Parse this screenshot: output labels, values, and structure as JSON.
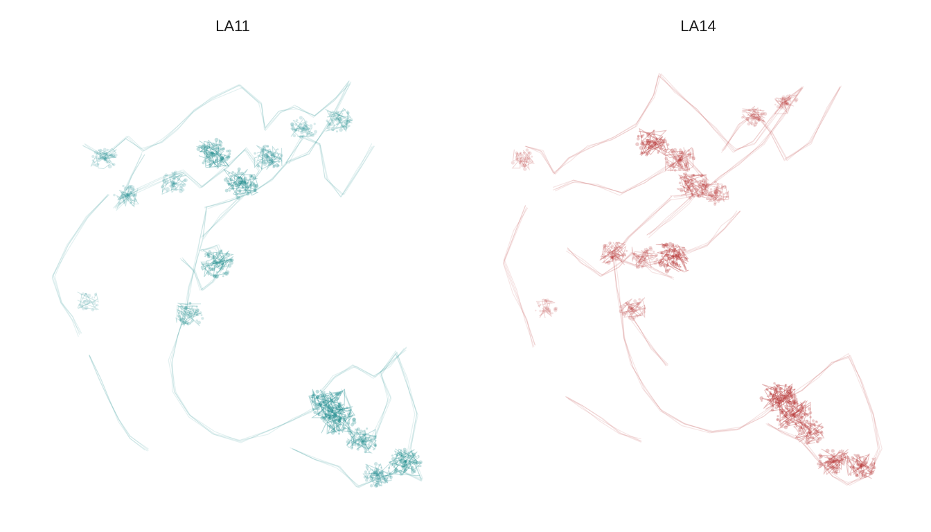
{
  "chart_data": [
    {
      "type": "line",
      "title": "LA11",
      "subtitle": "",
      "xlabel": "",
      "ylabel": "",
      "color": "#1a8a8c",
      "axes_visible": false,
      "grid": false,
      "legend": "none",
      "series": [
        {
          "points": [
            [
              0.1,
              0.18
            ],
            [
              0.14,
              0.2
            ],
            [
              0.17,
              0.19
            ],
            [
              0.21,
              0.16
            ],
            [
              0.25,
              0.19
            ],
            [
              0.3,
              0.17
            ],
            [
              0.34,
              0.14
            ],
            [
              0.38,
              0.1
            ],
            [
              0.43,
              0.07
            ],
            [
              0.5,
              0.04
            ],
            [
              0.55,
              0.08
            ],
            [
              0.56,
              0.14
            ],
            [
              0.6,
              0.1
            ],
            [
              0.64,
              0.09
            ],
            [
              0.69,
              0.11
            ],
            [
              0.74,
              0.07
            ],
            [
              0.78,
              0.03
            ],
            [
              0.73,
              0.12
            ],
            [
              0.67,
              0.2
            ],
            [
              0.62,
              0.22
            ],
            [
              0.58,
              0.26
            ],
            [
              0.53,
              0.29
            ],
            [
              0.47,
              0.31
            ],
            [
              0.41,
              0.33
            ]
          ]
        },
        {
          "points": [
            [
              0.41,
              0.33
            ],
            [
              0.4,
              0.4
            ],
            [
              0.38,
              0.47
            ],
            [
              0.37,
              0.52
            ],
            [
              0.36,
              0.57
            ],
            [
              0.34,
              0.63
            ],
            [
              0.32,
              0.69
            ],
            [
              0.33,
              0.76
            ],
            [
              0.37,
              0.82
            ],
            [
              0.43,
              0.86
            ],
            [
              0.5,
              0.88
            ],
            [
              0.57,
              0.86
            ],
            [
              0.63,
              0.83
            ],
            [
              0.68,
              0.81
            ],
            [
              0.72,
              0.79
            ],
            [
              0.76,
              0.76
            ]
          ]
        },
        {
          "points": [
            [
              0.76,
              0.76
            ],
            [
              0.78,
              0.8
            ],
            [
              0.77,
              0.85
            ],
            [
              0.8,
              0.88
            ],
            [
              0.84,
              0.87
            ],
            [
              0.86,
              0.83
            ],
            [
              0.88,
              0.78
            ],
            [
              0.86,
              0.72
            ],
            [
              0.9,
              0.67
            ],
            [
              0.92,
              0.73
            ],
            [
              0.95,
              0.82
            ],
            [
              0.93,
              0.9
            ],
            [
              0.96,
              0.97
            ],
            [
              0.91,
              0.95
            ],
            [
              0.85,
              0.97
            ],
            [
              0.8,
              0.99
            ],
            [
              0.75,
              0.94
            ],
            [
              0.69,
              0.92
            ],
            [
              0.63,
              0.9
            ]
          ]
        },
        {
          "points": [
            [
              0.16,
              0.3
            ],
            [
              0.11,
              0.35
            ],
            [
              0.06,
              0.42
            ],
            [
              0.02,
              0.49
            ],
            [
              0.04,
              0.55
            ],
            [
              0.07,
              0.59
            ],
            [
              0.09,
              0.63
            ]
          ]
        },
        {
          "points": [
            [
              0.11,
              0.68
            ],
            [
              0.14,
              0.73
            ],
            [
              0.16,
              0.78
            ],
            [
              0.19,
              0.83
            ],
            [
              0.22,
              0.87
            ],
            [
              0.26,
              0.9
            ]
          ]
        },
        {
          "points": [
            [
              0.25,
              0.2
            ],
            [
              0.22,
              0.25
            ],
            [
              0.2,
              0.3
            ],
            [
              0.18,
              0.33
            ],
            [
              0.23,
              0.29
            ],
            [
              0.3,
              0.26
            ],
            [
              0.35,
              0.24
            ],
            [
              0.4,
              0.28
            ],
            [
              0.46,
              0.23
            ],
            [
              0.51,
              0.19
            ],
            [
              0.55,
              0.24
            ],
            [
              0.5,
              0.3
            ],
            [
              0.45,
              0.35
            ],
            [
              0.4,
              0.4
            ]
          ]
        },
        {
          "points": [
            [
              0.35,
              0.45
            ],
            [
              0.38,
              0.48
            ],
            [
              0.4,
              0.52
            ],
            [
              0.43,
              0.5
            ],
            [
              0.46,
              0.46
            ],
            [
              0.44,
              0.42
            ],
            [
              0.4,
              0.43
            ]
          ]
        },
        {
          "points": [
            [
              0.62,
              0.22
            ],
            [
              0.66,
              0.16
            ],
            [
              0.7,
              0.18
            ],
            [
              0.72,
              0.26
            ],
            [
              0.76,
              0.3
            ],
            [
              0.8,
              0.24
            ],
            [
              0.84,
              0.18
            ]
          ]
        },
        {
          "points": [
            [
              0.69,
              0.78
            ],
            [
              0.74,
              0.73
            ],
            [
              0.79,
              0.7
            ],
            [
              0.84,
              0.73
            ],
            [
              0.88,
              0.7
            ],
            [
              0.92,
              0.66
            ]
          ]
        }
      ],
      "clusters": [
        {
          "x": 0.43,
          "y": 0.2,
          "weight": 0.9
        },
        {
          "x": 0.5,
          "y": 0.27,
          "weight": 0.9
        },
        {
          "x": 0.57,
          "y": 0.21,
          "weight": 0.6
        },
        {
          "x": 0.66,
          "y": 0.14,
          "weight": 0.4
        },
        {
          "x": 0.75,
          "y": 0.12,
          "weight": 0.5
        },
        {
          "x": 0.33,
          "y": 0.27,
          "weight": 0.4
        },
        {
          "x": 0.15,
          "y": 0.21,
          "weight": 0.4
        },
        {
          "x": 0.21,
          "y": 0.3,
          "weight": 0.4
        },
        {
          "x": 0.44,
          "y": 0.46,
          "weight": 0.8
        },
        {
          "x": 0.37,
          "y": 0.58,
          "weight": 0.5
        },
        {
          "x": 0.72,
          "y": 0.79,
          "weight": 1.0
        },
        {
          "x": 0.75,
          "y": 0.83,
          "weight": 0.9
        },
        {
          "x": 0.81,
          "y": 0.88,
          "weight": 0.7
        },
        {
          "x": 0.92,
          "y": 0.93,
          "weight": 0.8
        },
        {
          "x": 0.85,
          "y": 0.96,
          "weight": 0.6
        },
        {
          "x": 0.11,
          "y": 0.55,
          "weight": 0.2
        }
      ]
    },
    {
      "type": "line",
      "title": "LA14",
      "subtitle": "",
      "xlabel": "",
      "ylabel": "",
      "color": "#b22b2b",
      "axes_visible": false,
      "grid": false,
      "legend": "none",
      "series": [
        {
          "points": [
            [
              0.08,
              0.19
            ],
            [
              0.12,
              0.2
            ],
            [
              0.15,
              0.25
            ],
            [
              0.19,
              0.22
            ],
            [
              0.24,
              0.19
            ],
            [
              0.3,
              0.17
            ],
            [
              0.36,
              0.14
            ],
            [
              0.4,
              0.07
            ],
            [
              0.42,
              0.02
            ],
            [
              0.46,
              0.06
            ],
            [
              0.51,
              0.1
            ],
            [
              0.56,
              0.15
            ],
            [
              0.61,
              0.2
            ],
            [
              0.66,
              0.18
            ],
            [
              0.7,
              0.13
            ],
            [
              0.74,
              0.08
            ],
            [
              0.78,
              0.05
            ],
            [
              0.73,
              0.12
            ],
            [
              0.68,
              0.18
            ],
            [
              0.62,
              0.23
            ],
            [
              0.57,
              0.26
            ],
            [
              0.52,
              0.3
            ],
            [
              0.45,
              0.31
            ]
          ]
        },
        {
          "points": [
            [
              0.45,
              0.31
            ],
            [
              0.4,
              0.35
            ],
            [
              0.34,
              0.4
            ],
            [
              0.3,
              0.45
            ],
            [
              0.36,
              0.47
            ],
            [
              0.42,
              0.46
            ],
            [
              0.48,
              0.44
            ],
            [
              0.54,
              0.42
            ],
            [
              0.58,
              0.38
            ],
            [
              0.62,
              0.34
            ]
          ]
        },
        {
          "points": [
            [
              0.3,
              0.45
            ],
            [
              0.31,
              0.52
            ],
            [
              0.32,
              0.58
            ],
            [
              0.33,
              0.64
            ],
            [
              0.35,
              0.7
            ],
            [
              0.38,
              0.76
            ],
            [
              0.42,
              0.81
            ],
            [
              0.48,
              0.84
            ],
            [
              0.55,
              0.86
            ],
            [
              0.62,
              0.85
            ],
            [
              0.68,
              0.82
            ],
            [
              0.74,
              0.78
            ]
          ]
        },
        {
          "points": [
            [
              0.74,
              0.78
            ],
            [
              0.78,
              0.76
            ],
            [
              0.82,
              0.73
            ],
            [
              0.86,
              0.7
            ],
            [
              0.9,
              0.68
            ],
            [
              0.93,
              0.74
            ],
            [
              0.96,
              0.82
            ],
            [
              0.98,
              0.9
            ],
            [
              0.95,
              0.96
            ],
            [
              0.9,
              0.98
            ],
            [
              0.86,
              0.96
            ],
            [
              0.82,
              0.92
            ],
            [
              0.78,
              0.88
            ],
            [
              0.73,
              0.86
            ],
            [
              0.69,
              0.84
            ]
          ]
        },
        {
          "points": [
            [
              0.08,
              0.33
            ],
            [
              0.05,
              0.39
            ],
            [
              0.02,
              0.46
            ],
            [
              0.05,
              0.53
            ],
            [
              0.08,
              0.6
            ],
            [
              0.1,
              0.66
            ]
          ]
        },
        {
          "points": [
            [
              0.18,
              0.78
            ],
            [
              0.22,
              0.8
            ],
            [
              0.27,
              0.83
            ],
            [
              0.32,
              0.86
            ],
            [
              0.37,
              0.88
            ]
          ]
        },
        {
          "points": [
            [
              0.15,
              0.29
            ],
            [
              0.2,
              0.27
            ],
            [
              0.26,
              0.28
            ],
            [
              0.32,
              0.3
            ],
            [
              0.38,
              0.27
            ],
            [
              0.44,
              0.24
            ],
            [
              0.49,
              0.22
            ],
            [
              0.54,
              0.27
            ],
            [
              0.49,
              0.32
            ],
            [
              0.44,
              0.36
            ],
            [
              0.39,
              0.4
            ]
          ]
        },
        {
          "points": [
            [
              0.18,
              0.43
            ],
            [
              0.22,
              0.46
            ],
            [
              0.27,
              0.49
            ],
            [
              0.31,
              0.47
            ],
            [
              0.35,
              0.44
            ],
            [
              0.4,
              0.48
            ],
            [
              0.45,
              0.5
            ]
          ]
        },
        {
          "points": [
            [
              0.58,
              0.2
            ],
            [
              0.62,
              0.14
            ],
            [
              0.66,
              0.11
            ],
            [
              0.7,
              0.16
            ],
            [
              0.74,
              0.22
            ],
            [
              0.8,
              0.18
            ],
            [
              0.85,
              0.1
            ],
            [
              0.88,
              0.05
            ]
          ]
        },
        {
          "points": [
            [
              0.34,
              0.58
            ],
            [
              0.37,
              0.62
            ],
            [
              0.4,
              0.66
            ],
            [
              0.44,
              0.7
            ]
          ]
        }
      ],
      "clusters": [
        {
          "x": 0.4,
          "y": 0.18,
          "weight": 0.8
        },
        {
          "x": 0.47,
          "y": 0.22,
          "weight": 0.6
        },
        {
          "x": 0.5,
          "y": 0.28,
          "weight": 0.7
        },
        {
          "x": 0.56,
          "y": 0.3,
          "weight": 0.5
        },
        {
          "x": 0.66,
          "y": 0.12,
          "weight": 0.4
        },
        {
          "x": 0.74,
          "y": 0.09,
          "weight": 0.3
        },
        {
          "x": 0.3,
          "y": 0.44,
          "weight": 0.5
        },
        {
          "x": 0.38,
          "y": 0.45,
          "weight": 0.4
        },
        {
          "x": 0.45,
          "y": 0.45,
          "weight": 0.9
        },
        {
          "x": 0.35,
          "y": 0.57,
          "weight": 0.4
        },
        {
          "x": 0.72,
          "y": 0.78,
          "weight": 1.0
        },
        {
          "x": 0.76,
          "y": 0.82,
          "weight": 0.9
        },
        {
          "x": 0.8,
          "y": 0.86,
          "weight": 0.6
        },
        {
          "x": 0.86,
          "y": 0.93,
          "weight": 0.7
        },
        {
          "x": 0.93,
          "y": 0.94,
          "weight": 0.7
        },
        {
          "x": 0.13,
          "y": 0.57,
          "weight": 0.2
        },
        {
          "x": 0.07,
          "y": 0.22,
          "weight": 0.3
        }
      ]
    }
  ]
}
